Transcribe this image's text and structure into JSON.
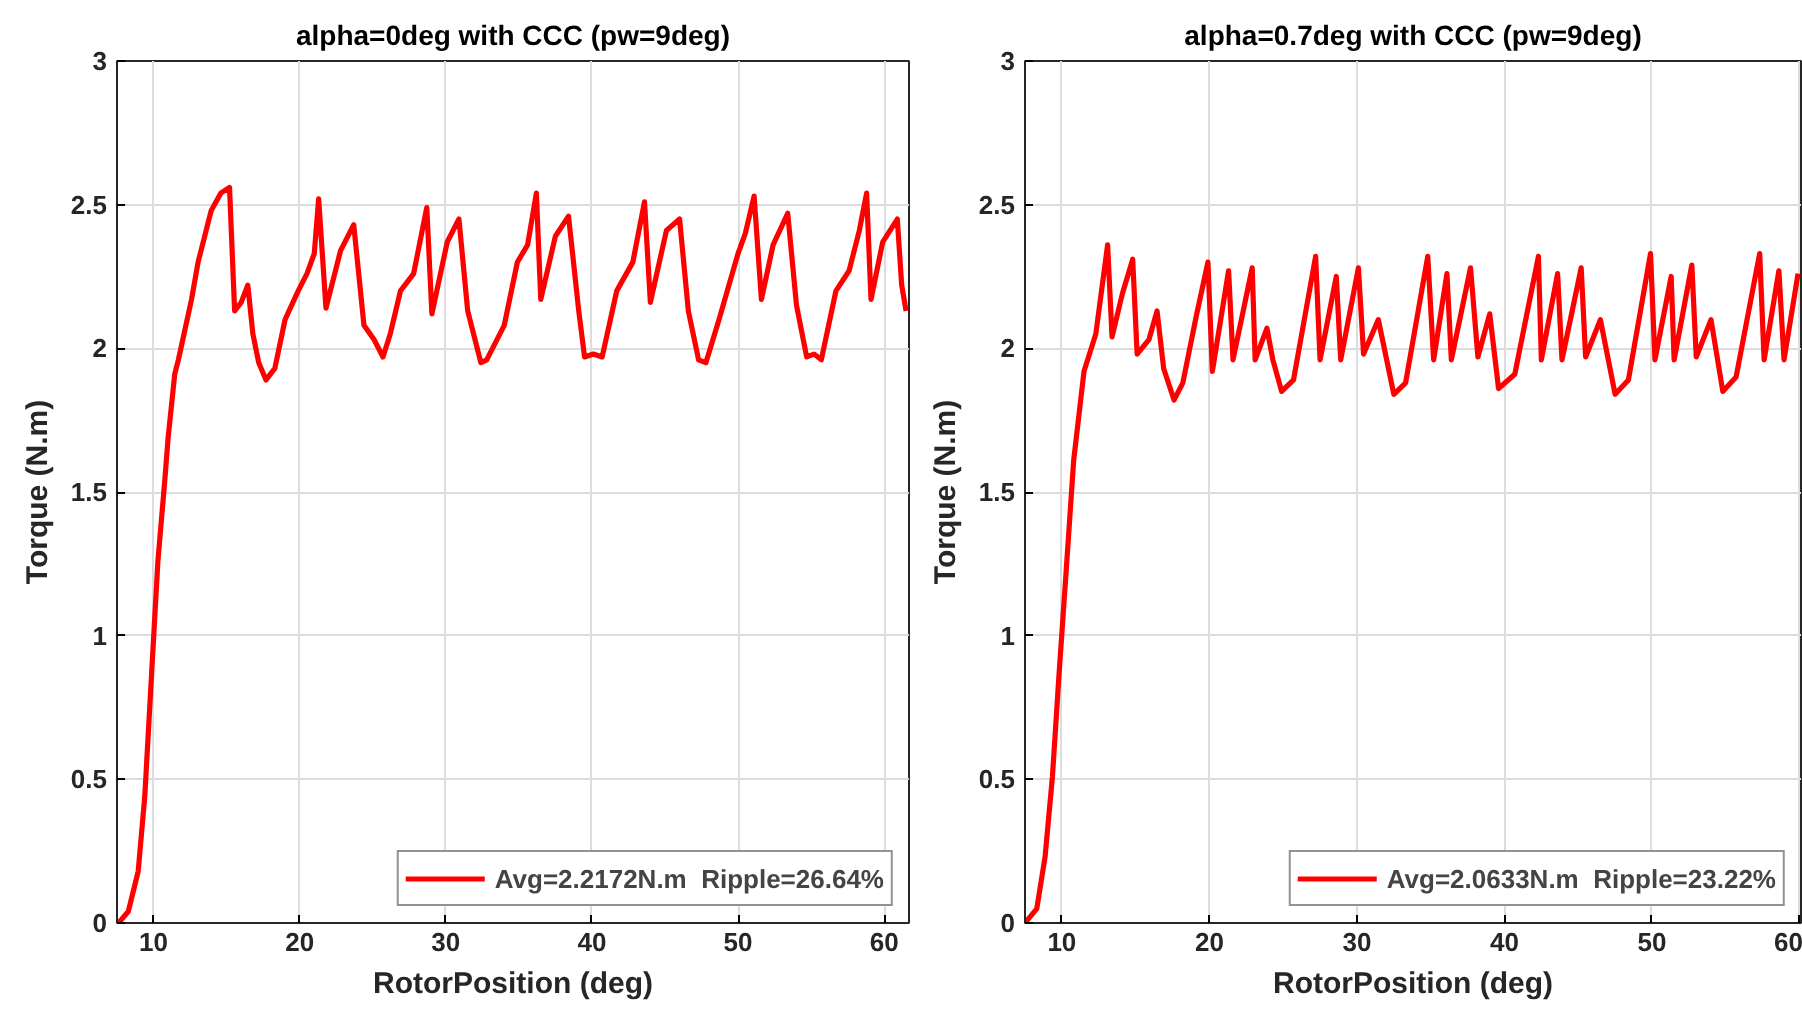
{
  "chart_data": [
    {
      "type": "line",
      "title": "alpha=0deg with CCC (pw=9deg)",
      "xlabel": "RotorPosition (deg)",
      "ylabel": "Torque (N.m)",
      "xlim": [
        7.5,
        61.7
      ],
      "xticks": [
        10,
        20,
        30,
        40,
        50,
        60
      ],
      "ylim": [
        0,
        3
      ],
      "yticks": [
        0,
        0.5,
        1,
        1.5,
        2,
        2.5,
        3
      ],
      "grid": true,
      "legend": "bottom right",
      "line_style": "solid",
      "series": [
        {
          "name": "Avg=2.2172N.m  Ripple=26.64%",
          "color": "#ff0000",
          "x": [
            7.6,
            8.27,
            8.95,
            9.4,
            9.86,
            10.3,
            10.77,
            11.0,
            11.45,
            11.7,
            12.6,
            13.05,
            13.95,
            14.6,
            15.2,
            15.55,
            16.0,
            16.45,
            16.8,
            17.2,
            17.7,
            18.3,
            19.0,
            19.9,
            20.5,
            21.0,
            21.3,
            21.8,
            22.8,
            23.7,
            24.4,
            25.1,
            25.7,
            26.2,
            26.9,
            27.8,
            28.7,
            29.05,
            30.1,
            30.9,
            31.5,
            32.4,
            32.8,
            34.0,
            34.9,
            35.6,
            36.2,
            36.5,
            37.5,
            38.4,
            39.1,
            39.5,
            40.1,
            40.7,
            41.7,
            42.8,
            43.6,
            44.0,
            45.1,
            46.0,
            46.6,
            47.3,
            47.8,
            48.7,
            50.0,
            50.5,
            51.1,
            51.6,
            52.4,
            53.4,
            54.0,
            54.7,
            55.2,
            55.7,
            56.7,
            57.6,
            58.3,
            58.8,
            59.1,
            59.9,
            60.9,
            61.2,
            61.5
          ],
          "values": [
            0,
            0.04,
            0.18,
            0.44,
            0.86,
            1.26,
            1.54,
            1.69,
            1.91,
            1.96,
            2.17,
            2.3,
            2.48,
            2.54,
            2.56,
            2.13,
            2.16,
            2.22,
            2.05,
            1.95,
            1.89,
            1.93,
            2.1,
            2.2,
            2.26,
            2.33,
            2.52,
            2.14,
            2.34,
            2.43,
            2.08,
            2.03,
            1.97,
            2.05,
            2.2,
            2.26,
            2.49,
            2.12,
            2.37,
            2.45,
            2.13,
            1.95,
            1.96,
            2.08,
            2.3,
            2.36,
            2.54,
            2.17,
            2.39,
            2.46,
            2.13,
            1.97,
            1.98,
            1.97,
            2.2,
            2.3,
            2.51,
            2.16,
            2.41,
            2.45,
            2.13,
            1.96,
            1.95,
            2.1,
            2.33,
            2.4,
            2.53,
            2.17,
            2.36,
            2.47,
            2.15,
            1.97,
            1.98,
            1.96,
            2.2,
            2.27,
            2.41,
            2.54,
            2.17,
            2.37,
            2.45,
            2.22,
            2.13
          ]
        }
      ]
    },
    {
      "type": "line",
      "title": "alpha=0.7deg with CCC (pw=9deg)",
      "xlabel": "RotorPosition (deg)",
      "ylabel": "Torque (N.m)",
      "xlim": [
        7.5,
        60.1
      ],
      "xticks": [
        10,
        20,
        30,
        40,
        50,
        60
      ],
      "ylim": [
        0,
        3
      ],
      "yticks": [
        0,
        0.5,
        1,
        1.5,
        2,
        2.5,
        3
      ],
      "grid": true,
      "legend": "bottom right",
      "line_style": "solid",
      "series": [
        {
          "name": "Avg=2.0633N.m  Ripple=23.22%",
          "color": "#ff0000",
          "x": [
            7.5,
            8.3,
            8.86,
            9.36,
            9.8,
            10.27,
            10.8,
            11.5,
            12.3,
            13.1,
            13.4,
            14.1,
            14.8,
            15.1,
            15.9,
            16.45,
            16.9,
            17.6,
            18.2,
            19.1,
            19.9,
            20.2,
            21.3,
            21.6,
            22.9,
            23.1,
            23.9,
            24.3,
            24.9,
            25.7,
            27.2,
            27.5,
            28.6,
            28.9,
            30.1,
            30.45,
            31.45,
            32.5,
            33.3,
            34.8,
            35.2,
            36.1,
            36.4,
            37.7,
            38.2,
            39.0,
            39.6,
            40.7,
            42.3,
            42.5,
            43.6,
            43.9,
            45.2,
            45.5,
            46.5,
            47.5,
            48.4,
            49.9,
            50.2,
            51.3,
            51.5,
            52.7,
            53.0,
            54.0,
            54.8,
            55.7,
            57.3,
            57.6,
            58.6,
            58.95,
            59.9
          ],
          "values": [
            0,
            0.05,
            0.23,
            0.51,
            0.86,
            1.21,
            1.61,
            1.92,
            2.05,
            2.36,
            2.04,
            2.19,
            2.31,
            1.98,
            2.03,
            2.13,
            1.93,
            1.82,
            1.88,
            2.11,
            2.3,
            1.92,
            2.27,
            1.96,
            2.28,
            1.96,
            2.07,
            1.96,
            1.85,
            1.89,
            2.32,
            1.96,
            2.25,
            1.96,
            2.28,
            1.98,
            2.1,
            1.84,
            1.88,
            2.32,
            1.96,
            2.26,
            1.96,
            2.28,
            1.97,
            2.12,
            1.86,
            1.91,
            2.32,
            1.96,
            2.26,
            1.96,
            2.28,
            1.97,
            2.1,
            1.84,
            1.89,
            2.33,
            1.96,
            2.25,
            1.96,
            2.29,
            1.97,
            2.1,
            1.85,
            1.9,
            2.33,
            1.96,
            2.27,
            1.96,
            2.26
          ]
        }
      ]
    }
  ]
}
